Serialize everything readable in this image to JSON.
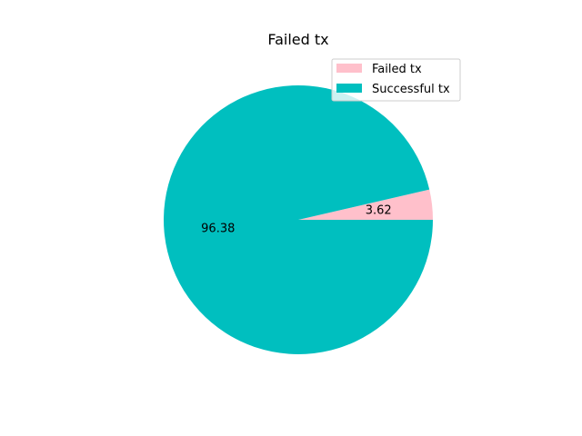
{
  "chart_data": {
    "type": "pie",
    "title": "Failed tx",
    "categories": [
      "Failed tx",
      "Successful tx"
    ],
    "values": [
      3.62,
      96.38
    ],
    "colors": [
      "#ffc0cb",
      "#00bfbf"
    ],
    "labels": [
      "3.62",
      "96.38"
    ],
    "legend": {
      "placement": "top-right",
      "entries": [
        "Failed tx",
        "Successful tx"
      ]
    }
  }
}
